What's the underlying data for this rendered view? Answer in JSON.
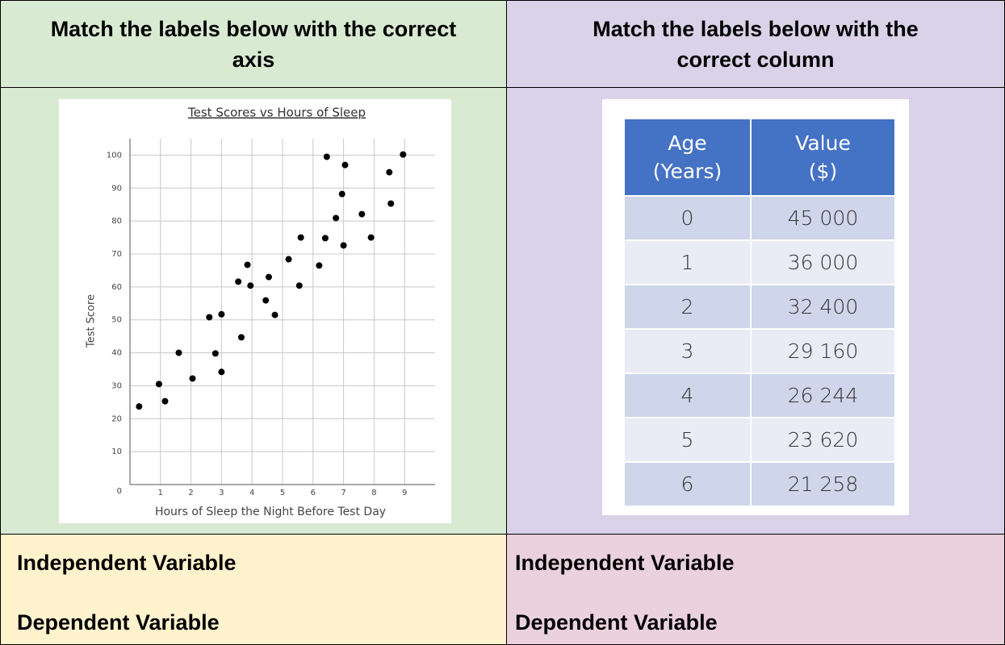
{
  "left": {
    "heading": "Match the labels below with the correct axis",
    "chart": {
      "type": "scatter",
      "title": "Test Scores vs Hours of Sleep",
      "x_label": "Hours of Sleep the Night Before Test Day",
      "y_label": "Test Score",
      "x": [
        0.3,
        0.95,
        1.15,
        1.6,
        2.05,
        2.6,
        2.8,
        3.0,
        3.0,
        3.55,
        3.65,
        3.85,
        3.95,
        4.45,
        4.55,
        4.75,
        5.2,
        5.55,
        5.6,
        6.2,
        6.4,
        6.45,
        6.75,
        6.95,
        7.05,
        7.0,
        7.6,
        7.9,
        8.5,
        8.55,
        8.95
      ],
      "y": [
        23.7,
        30.5,
        25.3,
        40,
        32.2,
        50.8,
        39.8,
        51.7,
        34.2,
        61.6,
        44.7,
        66.7,
        60.4,
        55.9,
        63,
        51.5,
        68.4,
        60.4,
        75,
        66.5,
        74.8,
        99.5,
        80.9,
        88.2,
        97,
        72.6,
        82.1,
        75,
        94.8,
        85.3,
        100.2
      ],
      "color": "#000000",
      "grid": true,
      "xlim": [
        0,
        10
      ],
      "xticks": [
        1,
        2,
        3,
        4,
        5,
        6,
        7,
        8,
        9
      ],
      "ylim": [
        0,
        105
      ],
      "yticks": [
        0,
        10,
        20,
        30,
        40,
        50,
        60,
        70,
        80,
        90,
        100
      ]
    },
    "labels": [
      "Independent Variable",
      "Dependent Variable"
    ]
  },
  "right": {
    "heading": "Match the labels below with the correct column",
    "table": {
      "columns": [
        [
          "Age",
          "(Years)"
        ],
        [
          "Value",
          "($)"
        ]
      ],
      "rows": [
        [
          "0",
          "45 000"
        ],
        [
          "1",
          "36 000"
        ],
        [
          "2",
          "32 400"
        ],
        [
          "3",
          "29 160"
        ],
        [
          "4",
          "26 244"
        ],
        [
          "5",
          "23 620"
        ],
        [
          "6",
          "21 258"
        ]
      ]
    },
    "labels": [
      "Independent Variable",
      "Dependent Variable"
    ]
  }
}
